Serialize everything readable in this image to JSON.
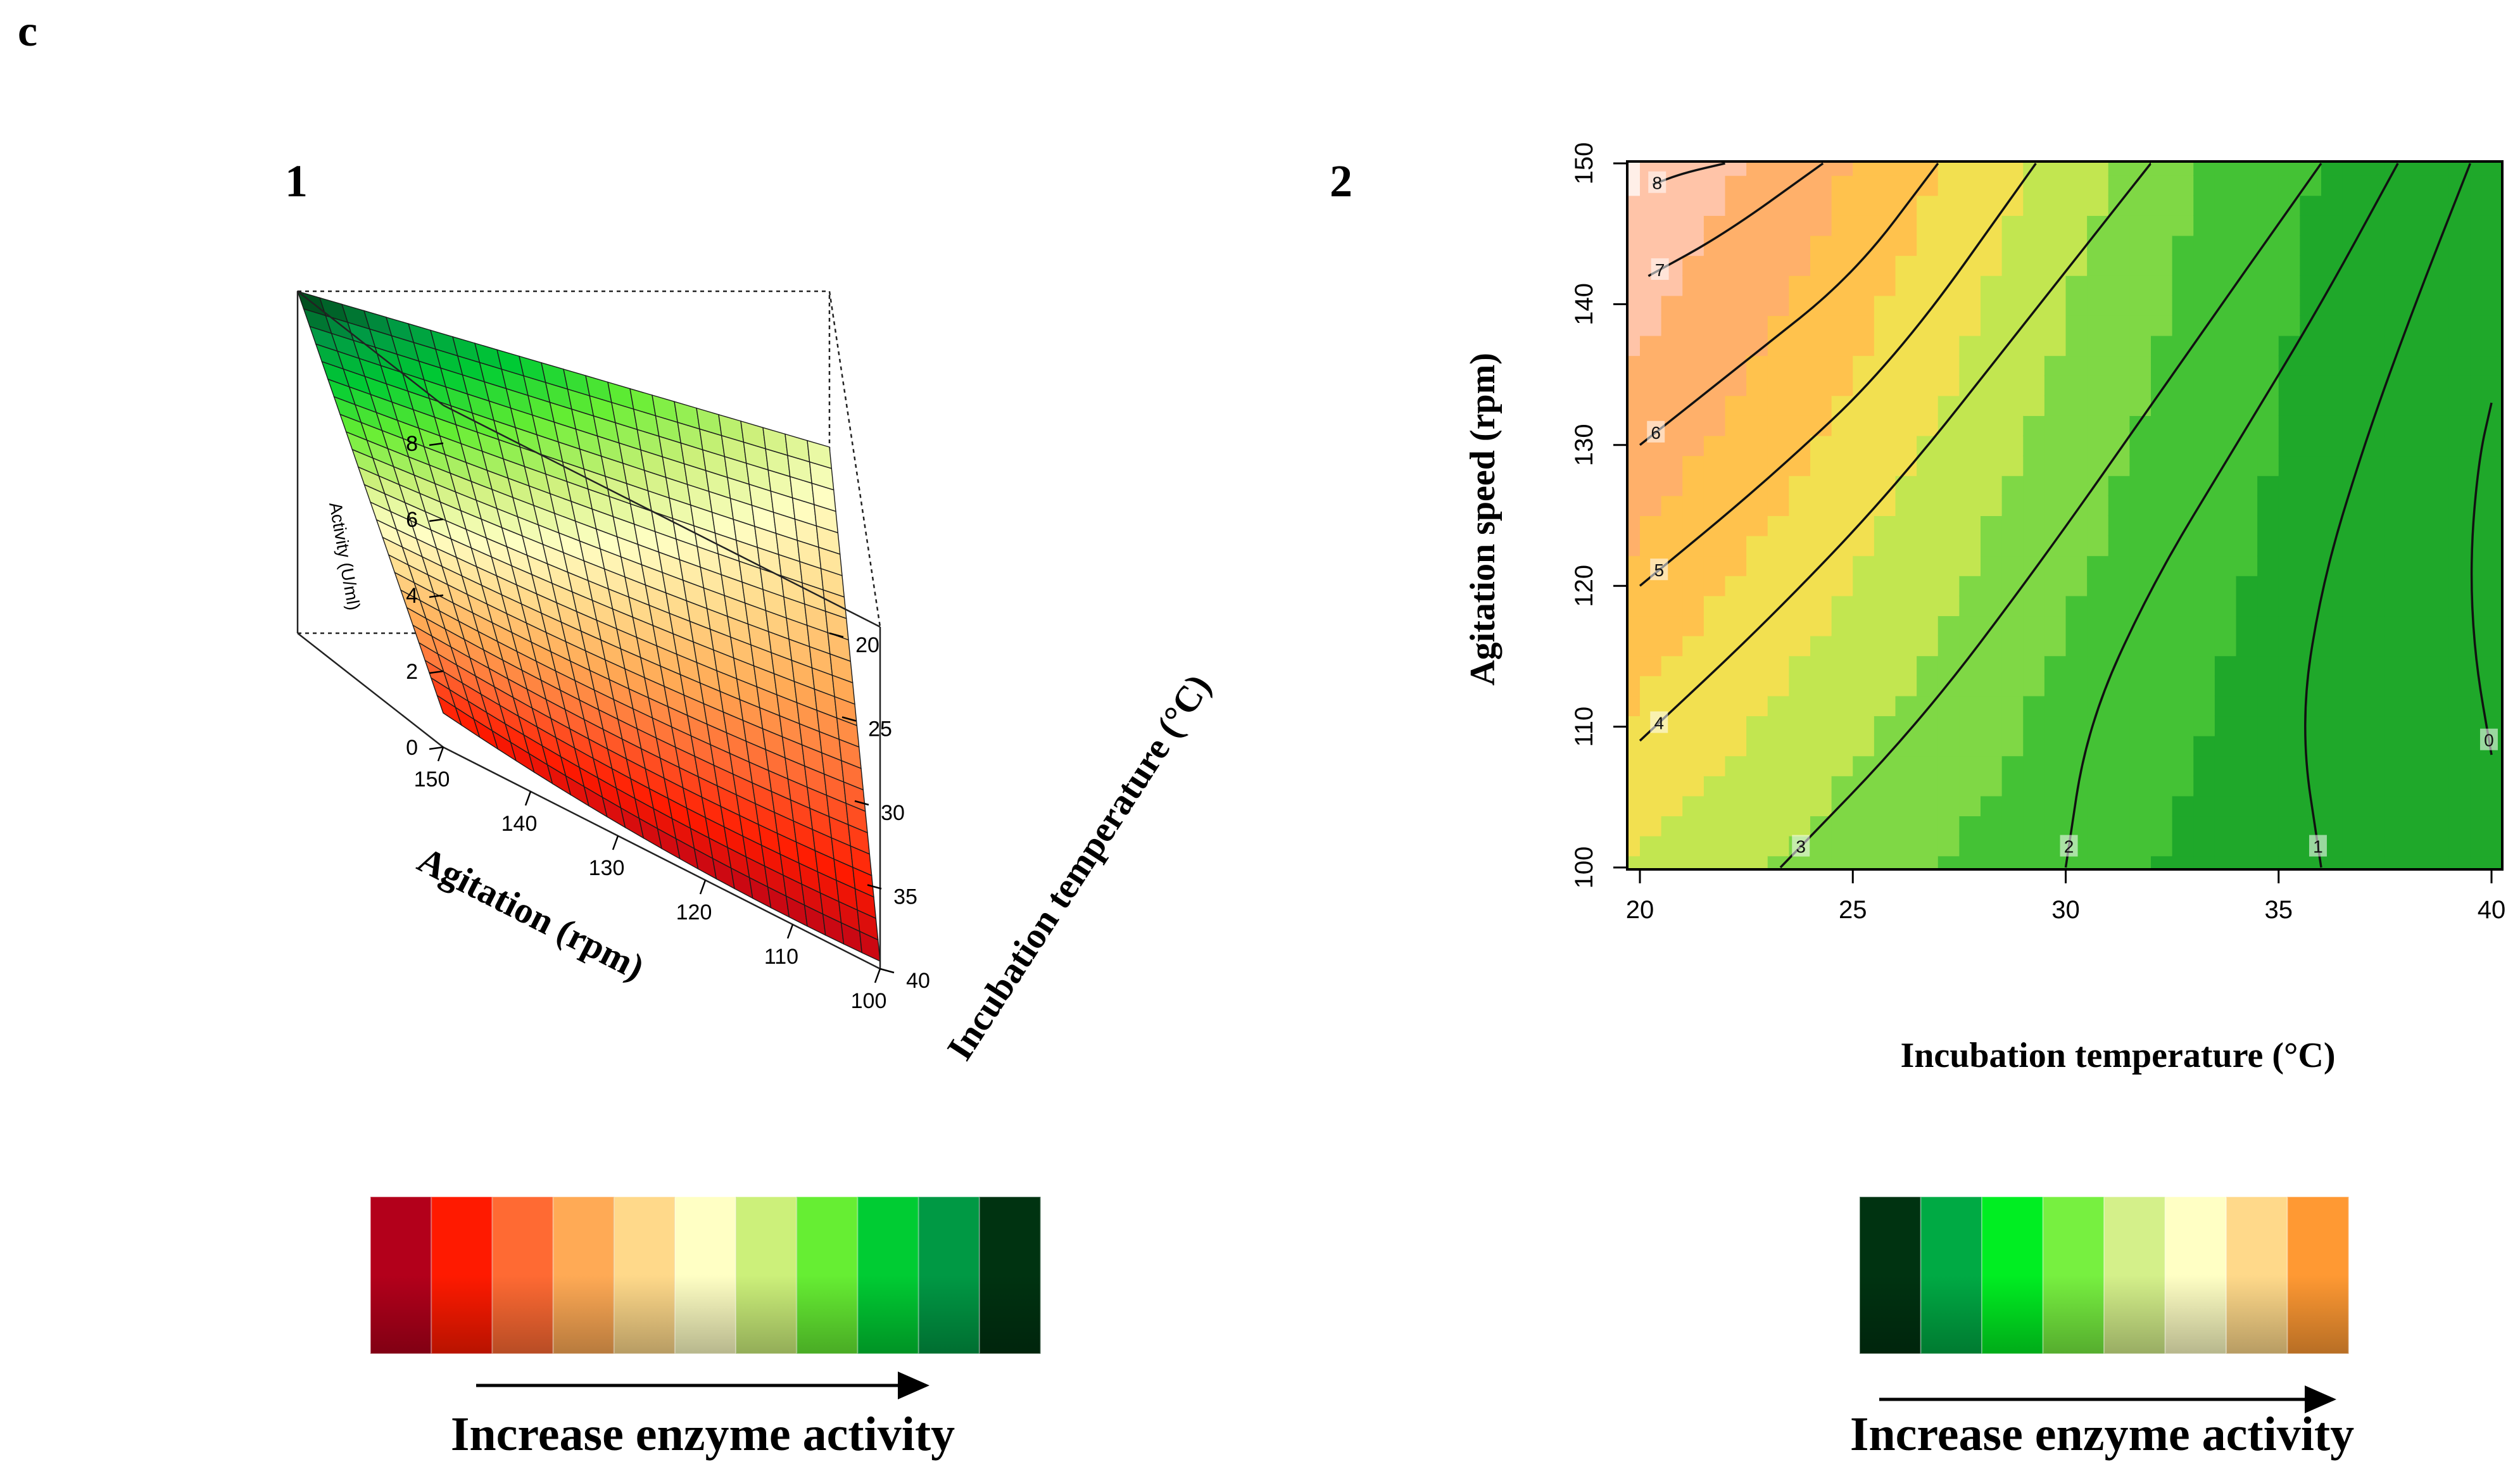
{
  "figure": {
    "panel_letter": "c",
    "colors": {
      "surface_scale": [
        "#b3001b",
        "#ff1a00",
        "#ff6a33",
        "#ffaa55",
        "#ffd98a",
        "#ffffc4",
        "#ccf07a",
        "#66ee33",
        "#00cc33",
        "#009944",
        "#003311"
      ],
      "contour_scale": [
        "#003311",
        "#00aa44",
        "#00ee22",
        "#77f040",
        "#d4f08a",
        "#ffffc4",
        "#ffd98a",
        "#ff9933"
      ]
    }
  },
  "chart_data": [
    {
      "type": "surface3d",
      "panel_label": "1",
      "zlabel": "Activity (U/ml)",
      "xlabel": "Agitation (rpm)",
      "ylabel": "Incubation temperature (°C)",
      "x_ticks": [
        "150",
        "140",
        "130",
        "120",
        "110",
        "100"
      ],
      "y_ticks": [
        "20",
        "25",
        "30",
        "35",
        "40"
      ],
      "z_ticks": [
        "0",
        "2",
        "4",
        "6",
        "8"
      ],
      "xlim": [
        100,
        150
      ],
      "ylim": [
        20,
        40
      ],
      "zlim": [
        0,
        9
      ],
      "corner_values": [
        {
          "agitation": 150,
          "temperature": 20,
          "activity": 9.0
        },
        {
          "agitation": 100,
          "temperature": 20,
          "activity": 4.9
        },
        {
          "agitation": 150,
          "temperature": 40,
          "activity": 0.9
        },
        {
          "agitation": 100,
          "temperature": 40,
          "activity": 0.2
        }
      ],
      "colorbar_label": "Increase enzyme activity"
    },
    {
      "type": "contour",
      "panel_label": "2",
      "xlabel": "Incubation temperature (°C)",
      "ylabel": "Agitation speed (rpm)",
      "x_ticks": [
        "20",
        "25",
        "30",
        "35",
        "40"
      ],
      "y_ticks": [
        "100",
        "110",
        "120",
        "130",
        "140",
        "150"
      ],
      "xlim": [
        20,
        40
      ],
      "ylim": [
        100,
        150
      ],
      "contours": [
        {
          "level": "8",
          "points": [
            [
              20.3,
              148.5
            ],
            [
              21.0,
              149.3
            ],
            [
              22.0,
              150.0
            ]
          ]
        },
        {
          "level": "7",
          "points": [
            [
              20.2,
              142.0
            ],
            [
              22.0,
              145.0
            ],
            [
              24.3,
              150.0
            ]
          ]
        },
        {
          "level": "6",
          "points": [
            [
              20.0,
              130.0
            ],
            [
              22.5,
              136.0
            ],
            [
              25.0,
              142.0
            ],
            [
              27.0,
              150.0
            ]
          ]
        },
        {
          "level": "5",
          "points": [
            [
              20.0,
              120.0
            ],
            [
              23.0,
              127.5
            ],
            [
              26.0,
              136.0
            ],
            [
              29.3,
              150.0
            ]
          ]
        },
        {
          "level": "4",
          "points": [
            [
              20.0,
              109.0
            ],
            [
              23.0,
              117.5
            ],
            [
              26.0,
              127.0
            ],
            [
              29.0,
              138.5
            ],
            [
              32.0,
              150.0
            ]
          ]
        },
        {
          "level": "3",
          "points": [
            [
              23.3,
              100.0
            ],
            [
              26.5,
              110.0
            ],
            [
              29.5,
              122.0
            ],
            [
              32.5,
              135.0
            ],
            [
              36.0,
              150.0
            ]
          ]
        },
        {
          "level": "2",
          "points": [
            [
              30.0,
              100.0
            ],
            [
              30.5,
              110.0
            ],
            [
              32.0,
              120.0
            ],
            [
              34.0,
              130.0
            ],
            [
              36.0,
              140.0
            ],
            [
              37.8,
              150.0
            ]
          ]
        },
        {
          "level": "1",
          "points": [
            [
              36.0,
              100.0
            ],
            [
              35.5,
              110.0
            ],
            [
              36.0,
              120.0
            ],
            [
              37.0,
              130.0
            ],
            [
              38.2,
              140.0
            ],
            [
              39.5,
              150.0
            ]
          ]
        },
        {
          "level": "0",
          "points": [
            [
              40.0,
              108.0
            ],
            [
              39.6,
              115.0
            ],
            [
              39.5,
              122.0
            ],
            [
              39.7,
              129.0
            ],
            [
              40.0,
              133.0
            ]
          ]
        }
      ],
      "colorbar_label": "Increase enzyme activity"
    }
  ]
}
